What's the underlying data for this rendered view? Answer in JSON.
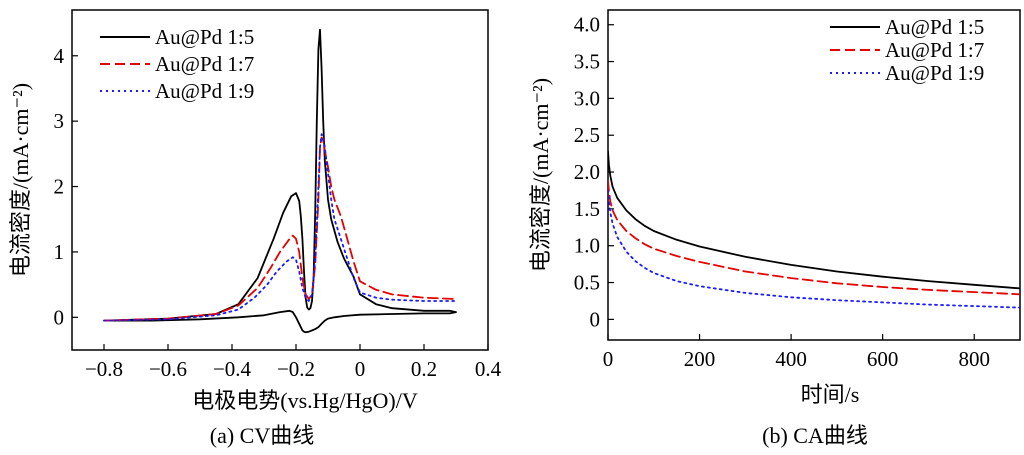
{
  "chart_data": [
    {
      "type": "line",
      "caption": "(a) CV曲线",
      "xlabel": "电极电势(vs.Hg/HgO)/V",
      "ylabel": "电流密度/(mA·cm⁻²)",
      "xlim": [
        -0.9,
        0.4
      ],
      "ylim": [
        -0.5,
        4.7
      ],
      "xticks": [
        -0.8,
        -0.6,
        -0.4,
        -0.2,
        0,
        0.2,
        0.4
      ],
      "xtick_labels": [
        "−0.8",
        "−0.6",
        "−0.4",
        "−0.2",
        "0",
        "0.2",
        "0.4"
      ],
      "yticks": [
        0,
        1,
        2,
        3,
        4
      ],
      "ytick_labels": [
        "0",
        "1",
        "2",
        "3",
        "4"
      ],
      "legend_position": "top-left",
      "grid": false,
      "series": [
        {
          "name": "Au@Pd 1:5",
          "color": "#000000",
          "dash": "solid",
          "x": [
            -0.8,
            -0.6,
            -0.45,
            -0.38,
            -0.32,
            -0.27,
            -0.24,
            -0.215,
            -0.2,
            -0.19,
            -0.185,
            -0.18,
            -0.175,
            -0.17,
            -0.165,
            -0.16,
            -0.155,
            -0.15,
            -0.145,
            -0.14,
            -0.135,
            -0.13,
            -0.125,
            -0.12,
            -0.115,
            -0.11,
            -0.1,
            -0.09,
            -0.07,
            -0.05,
            -0.02,
            0,
            0.05,
            0.1,
            0.2,
            0.28,
            0.3,
            0.28,
            0.2,
            0.1,
            0,
            -0.05,
            -0.08,
            -0.1,
            -0.11,
            -0.12,
            -0.13,
            -0.14,
            -0.15,
            -0.16,
            -0.17,
            -0.175,
            -0.18,
            -0.19,
            -0.2,
            -0.21,
            -0.22,
            -0.25,
            -0.3,
            -0.38,
            -0.5,
            -0.65,
            -0.8
          ],
          "y": [
            -0.05,
            -0.02,
            0.05,
            0.2,
            0.6,
            1.2,
            1.6,
            1.85,
            1.9,
            1.78,
            1.55,
            1.2,
            0.7,
            0.3,
            0.15,
            0.12,
            0.14,
            0.25,
            0.6,
            1.6,
            3.0,
            4.1,
            4.4,
            3.8,
            3.0,
            2.4,
            1.8,
            1.5,
            1.15,
            0.9,
            0.62,
            0.35,
            0.2,
            0.14,
            0.1,
            0.1,
            0.08,
            0.06,
            0.06,
            0.05,
            0.04,
            0.02,
            0.0,
            -0.02,
            -0.05,
            -0.1,
            -0.15,
            -0.18,
            -0.2,
            -0.22,
            -0.23,
            -0.22,
            -0.2,
            -0.1,
            0.0,
            0.08,
            0.1,
            0.08,
            0.03,
            0.0,
            -0.03,
            -0.05,
            -0.05
          ]
        },
        {
          "name": "Au@Pd 1:7",
          "color": "#e60000",
          "dash": "dashed",
          "x": [
            -0.8,
            -0.6,
            -0.45,
            -0.38,
            -0.32,
            -0.28,
            -0.25,
            -0.22,
            -0.21,
            -0.2,
            -0.19,
            -0.18,
            -0.17,
            -0.16,
            -0.15,
            -0.14,
            -0.13,
            -0.125,
            -0.12,
            -0.115,
            -0.11,
            -0.1,
            -0.09,
            -0.08,
            -0.06,
            -0.04,
            -0.02,
            0,
            0.05,
            0.1,
            0.2,
            0.3
          ],
          "y": [
            -0.05,
            -0.02,
            0.05,
            0.18,
            0.45,
            0.75,
            1.0,
            1.2,
            1.25,
            1.2,
            1.0,
            0.6,
            0.35,
            0.28,
            0.35,
            0.8,
            1.8,
            2.6,
            2.75,
            2.7,
            2.55,
            2.3,
            2.0,
            1.8,
            1.55,
            1.2,
            0.85,
            0.55,
            0.42,
            0.35,
            0.3,
            0.28
          ]
        },
        {
          "name": "Au@Pd 1:9",
          "color": "#1a1aff",
          "dash": "dotted",
          "x": [
            -0.8,
            -0.6,
            -0.45,
            -0.38,
            -0.33,
            -0.29,
            -0.26,
            -0.23,
            -0.21,
            -0.2,
            -0.19,
            -0.18,
            -0.17,
            -0.16,
            -0.15,
            -0.14,
            -0.13,
            -0.125,
            -0.12,
            -0.115,
            -0.11,
            -0.1,
            -0.09,
            -0.08,
            -0.06,
            -0.04,
            -0.02,
            0,
            0.05,
            0.1,
            0.2,
            0.3
          ],
          "y": [
            -0.05,
            -0.03,
            0.03,
            0.12,
            0.3,
            0.5,
            0.7,
            0.85,
            0.92,
            0.88,
            0.7,
            0.45,
            0.3,
            0.25,
            0.35,
            0.9,
            2.0,
            2.6,
            2.8,
            2.75,
            2.6,
            2.2,
            1.8,
            1.5,
            1.2,
            0.9,
            0.6,
            0.38,
            0.3,
            0.27,
            0.25,
            0.25
          ]
        }
      ]
    },
    {
      "type": "line",
      "caption": "(b) CA曲线",
      "xlabel": "时间/s",
      "ylabel": "电流密度/(mA·cm⁻²)",
      "xlim": [
        0,
        900
      ],
      "ylim": [
        -0.28,
        4.2
      ],
      "xticks": [
        0,
        200,
        400,
        600,
        800
      ],
      "xtick_labels": [
        "0",
        "200",
        "400",
        "600",
        "800"
      ],
      "yticks": [
        0,
        0.5,
        1.0,
        1.5,
        2.0,
        2.5,
        3.0,
        3.5,
        4.0
      ],
      "ytick_labels": [
        "0",
        "0.5",
        "1.0",
        "1.5",
        "2.0",
        "2.5",
        "3.0",
        "3.5",
        "4.0"
      ],
      "legend_position": "top-right",
      "grid": false,
      "series": [
        {
          "name": "Au@Pd 1:5",
          "color": "#000000",
          "dash": "solid",
          "x": [
            0,
            2,
            5,
            10,
            20,
            40,
            60,
            80,
            100,
            150,
            200,
            300,
            400,
            500,
            600,
            700,
            800,
            900
          ],
          "y": [
            2.28,
            2.1,
            1.95,
            1.8,
            1.65,
            1.48,
            1.36,
            1.27,
            1.2,
            1.08,
            0.99,
            0.85,
            0.74,
            0.65,
            0.58,
            0.52,
            0.47,
            0.42
          ]
        },
        {
          "name": "Au@Pd 1:7",
          "color": "#e60000",
          "dash": "dashed",
          "x": [
            0,
            2,
            5,
            10,
            20,
            40,
            60,
            80,
            100,
            150,
            200,
            300,
            400,
            500,
            600,
            700,
            800,
            900
          ],
          "y": [
            1.88,
            1.75,
            1.6,
            1.48,
            1.35,
            1.2,
            1.1,
            1.02,
            0.96,
            0.86,
            0.78,
            0.65,
            0.56,
            0.49,
            0.44,
            0.4,
            0.37,
            0.34
          ]
        },
        {
          "name": "Au@Pd 1:9",
          "color": "#1a1aff",
          "dash": "dotted",
          "x": [
            0,
            2,
            5,
            10,
            20,
            40,
            60,
            80,
            100,
            150,
            200,
            300,
            400,
            500,
            600,
            700,
            800,
            900
          ],
          "y": [
            1.75,
            1.6,
            1.45,
            1.3,
            1.12,
            0.92,
            0.79,
            0.7,
            0.63,
            0.52,
            0.45,
            0.36,
            0.3,
            0.26,
            0.23,
            0.2,
            0.18,
            0.16
          ]
        }
      ]
    }
  ]
}
